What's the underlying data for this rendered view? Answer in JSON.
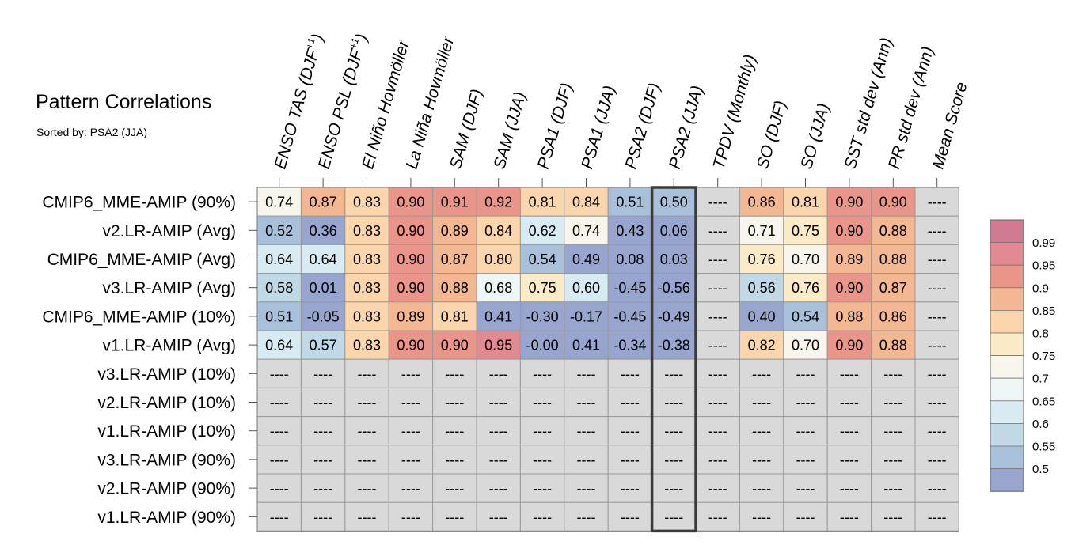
{
  "chart_data": {
    "type": "heatmap",
    "title": "Pattern Correlations",
    "subtitle": "Sorted by: PSA2 (JJA)",
    "columns": [
      {
        "label": "ENSO TAS (DJF",
        "sup": "+1",
        "suffix": ")"
      },
      {
        "label": "ENSO PSL (DJF",
        "sup": "+1",
        "suffix": ")"
      },
      {
        "label": "El Niño Hovmöller"
      },
      {
        "label": "La Niña Hovmöller"
      },
      {
        "label": "SAM (DJF)"
      },
      {
        "label": "SAM (JJA)"
      },
      {
        "label": "PSA1 (DJF)"
      },
      {
        "label": "PSA1 (JJA)"
      },
      {
        "label": "PSA2 (DJF)"
      },
      {
        "label": "PSA2 (JJA)"
      },
      {
        "label": "TPDV (Monthly)"
      },
      {
        "label": "SO (DJF)"
      },
      {
        "label": "SO (JJA)"
      },
      {
        "label": "SST std dev (Ann)"
      },
      {
        "label": "PR std dev (Ann)"
      },
      {
        "label": "Mean Score"
      }
    ],
    "rows": [
      "CMIP6_MME-AMIP (90%)",
      "v2.LR-AMIP (Avg)",
      "CMIP6_MME-AMIP (Avg)",
      "v3.LR-AMIP (Avg)",
      "CMIP6_MME-AMIP (10%)",
      "v1.LR-AMIP (Avg)",
      "v3.LR-AMIP (10%)",
      "v2.LR-AMIP (10%)",
      "v1.LR-AMIP (10%)",
      "v3.LR-AMIP (90%)",
      "v2.LR-AMIP (90%)",
      "v1.LR-AMIP (90%)"
    ],
    "values": [
      [
        "0.74",
        "0.87",
        "0.83",
        "0.90",
        "0.91",
        "0.92",
        "0.81",
        "0.84",
        "0.51",
        "0.50",
        null,
        "0.86",
        "0.81",
        "0.90",
        "0.90",
        null
      ],
      [
        "0.52",
        "0.36",
        "0.83",
        "0.90",
        "0.89",
        "0.84",
        "0.62",
        "0.74",
        "0.43",
        "0.06",
        null,
        "0.71",
        "0.75",
        "0.90",
        "0.88",
        null
      ],
      [
        "0.64",
        "0.64",
        "0.83",
        "0.90",
        "0.87",
        "0.80",
        "0.54",
        "0.49",
        "0.08",
        "0.03",
        null,
        "0.76",
        "0.70",
        "0.89",
        "0.88",
        null
      ],
      [
        "0.58",
        "0.01",
        "0.83",
        "0.90",
        "0.88",
        "0.68",
        "0.75",
        "0.60",
        "-0.45",
        "-0.56",
        null,
        "0.56",
        "0.76",
        "0.90",
        "0.87",
        null
      ],
      [
        "0.51",
        "-0.05",
        "0.83",
        "0.89",
        "0.81",
        "0.41",
        "-0.30",
        "-0.17",
        "-0.45",
        "-0.49",
        null,
        "0.40",
        "0.54",
        "0.88",
        "0.86",
        null
      ],
      [
        "0.64",
        "0.57",
        "0.83",
        "0.90",
        "0.90",
        "0.95",
        "-0.00",
        "0.41",
        "-0.34",
        "-0.38",
        null,
        "0.82",
        "0.70",
        "0.90",
        "0.88",
        null
      ],
      [
        null,
        null,
        null,
        null,
        null,
        null,
        null,
        null,
        null,
        null,
        null,
        null,
        null,
        null,
        null,
        null
      ],
      [
        null,
        null,
        null,
        null,
        null,
        null,
        null,
        null,
        null,
        null,
        null,
        null,
        null,
        null,
        null,
        null
      ],
      [
        null,
        null,
        null,
        null,
        null,
        null,
        null,
        null,
        null,
        null,
        null,
        null,
        null,
        null,
        null,
        null
      ],
      [
        null,
        null,
        null,
        null,
        null,
        null,
        null,
        null,
        null,
        null,
        null,
        null,
        null,
        null,
        null,
        null
      ],
      [
        null,
        null,
        null,
        null,
        null,
        null,
        null,
        null,
        null,
        null,
        null,
        null,
        null,
        null,
        null,
        null
      ],
      [
        null,
        null,
        null,
        null,
        null,
        null,
        null,
        null,
        null,
        null,
        null,
        null,
        null,
        null,
        null,
        null
      ]
    ],
    "missing_label": "----",
    "highlighted_column": "PSA2 (JJA)",
    "colorbar": {
      "ticks": [
        "0.99",
        "0.95",
        "0.9",
        "0.85",
        "0.8",
        "0.75",
        "0.7",
        "0.65",
        "0.6",
        "0.55",
        "0.5"
      ],
      "bounds": [
        0.5,
        0.55,
        0.6,
        0.65,
        0.7,
        0.75,
        0.8,
        0.85,
        0.9,
        0.95,
        0.99
      ],
      "colors": [
        "#98a6cf",
        "#a9c0db",
        "#c1d9e7",
        "#d8ebf2",
        "#eef6f8",
        "#f8f5ec",
        "#fcebc7",
        "#fbd6ac",
        "#f3b892",
        "#e9958a",
        "#e28a91",
        "#d07b91"
      ],
      "missing_color": "#d9d9d9"
    }
  }
}
